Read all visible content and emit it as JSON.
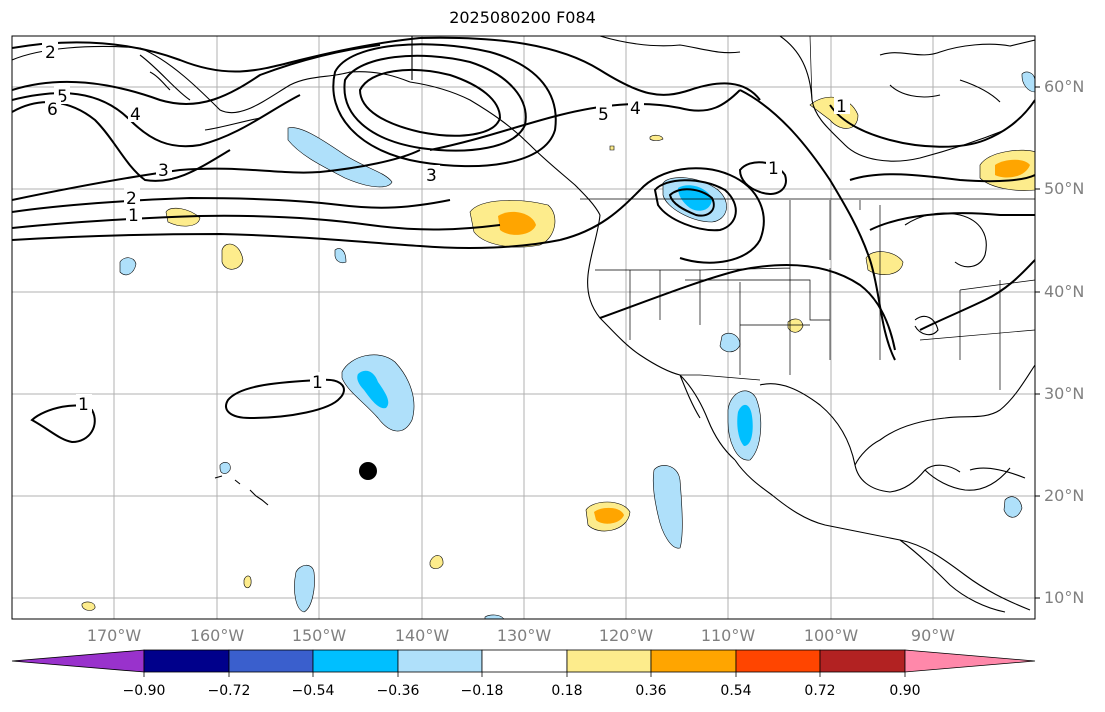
{
  "title": "2025080200 F084",
  "lat_labels": [
    "60°N",
    "50°N",
    "40°N",
    "30°N",
    "20°N",
    "10°N"
  ],
  "lon_labels": [
    "170°W",
    "160°W",
    "150°W",
    "140°W",
    "130°W",
    "120°W",
    "110°W",
    "100°W",
    "90°W"
  ],
  "contour_labels": [
    "2",
    "5",
    "6",
    "4",
    "3",
    "2",
    "1",
    "3",
    "5",
    "4",
    "1",
    "1",
    "1",
    "1"
  ],
  "colorbar": {
    "ticks": [
      "−0.90",
      "−0.72",
      "−0.54",
      "−0.36",
      "−0.18",
      "0.18",
      "0.36",
      "0.54",
      "0.72",
      "0.90"
    ],
    "colors": [
      "#9932cc",
      "#00008b",
      "#3a5fcd",
      "#00bfff",
      "#afe0fa",
      "#ffffff",
      "#fdec8c",
      "#ffa500",
      "#ff4500",
      "#b22222",
      "#ff88aa"
    ]
  },
  "colors": {
    "land_outline": "#000000",
    "grid": "#b0b0b0",
    "contour": "#000000",
    "marker": "#000000"
  }
}
